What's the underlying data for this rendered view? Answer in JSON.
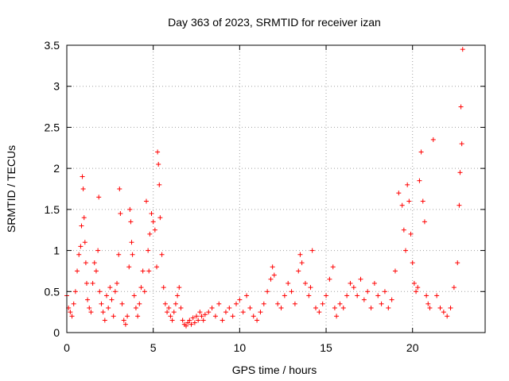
{
  "chart_data": {
    "type": "scatter",
    "title": "Day 363 of 2023, SRMTID for receiver izan",
    "xlabel": "GPS time / hours",
    "ylabel": "SRMTID / TECUs",
    "xlim": [
      0,
      24.2
    ],
    "ylim": [
      0,
      3.5
    ],
    "xticks": [
      0,
      5,
      10,
      15,
      20
    ],
    "xtick_labels": [
      "0",
      "5",
      "10",
      "15",
      "20"
    ],
    "yticks": [
      0,
      0.5,
      1,
      1.5,
      2,
      2.5,
      3,
      3.5
    ],
    "ytick_labels": [
      "0",
      "0.5",
      "1",
      "1.5",
      "2",
      "2.5",
      "3",
      "3.5"
    ],
    "grid": true,
    "marker": "plus",
    "series": [
      {
        "name": "SRMTID",
        "color": "#ff0000",
        "x": [
          0.0,
          0.1,
          0.2,
          0.3,
          0.4,
          0.5,
          0.6,
          0.7,
          0.8,
          0.85,
          0.9,
          0.95,
          1.0,
          1.05,
          1.1,
          1.15,
          1.2,
          1.3,
          1.4,
          1.5,
          1.6,
          1.7,
          1.8,
          1.85,
          1.9,
          2.0,
          2.1,
          2.2,
          2.3,
          2.4,
          2.5,
          2.6,
          2.7,
          2.8,
          2.9,
          3.0,
          3.05,
          3.1,
          3.2,
          3.3,
          3.4,
          3.5,
          3.6,
          3.65,
          3.7,
          3.75,
          3.8,
          3.9,
          4.0,
          4.1,
          4.2,
          4.3,
          4.4,
          4.5,
          4.6,
          4.7,
          4.75,
          4.8,
          4.9,
          5.0,
          5.1,
          5.2,
          5.25,
          5.3,
          5.35,
          5.4,
          5.5,
          5.6,
          5.7,
          5.8,
          5.9,
          6.0,
          6.1,
          6.2,
          6.3,
          6.4,
          6.5,
          6.6,
          6.7,
          6.8,
          6.9,
          7.0,
          7.1,
          7.2,
          7.3,
          7.4,
          7.5,
          7.6,
          7.7,
          7.8,
          7.9,
          8.0,
          8.2,
          8.4,
          8.6,
          8.8,
          9.0,
          9.2,
          9.4,
          9.6,
          9.8,
          10.0,
          10.2,
          10.4,
          10.6,
          10.8,
          11.0,
          11.2,
          11.4,
          11.6,
          11.8,
          11.9,
          12.0,
          12.2,
          12.4,
          12.6,
          12.8,
          13.0,
          13.2,
          13.4,
          13.5,
          13.6,
          13.8,
          14.0,
          14.1,
          14.2,
          14.4,
          14.6,
          14.8,
          15.0,
          15.2,
          15.4,
          15.5,
          15.6,
          15.8,
          16.0,
          16.2,
          16.4,
          16.6,
          16.8,
          17.0,
          17.2,
          17.4,
          17.6,
          17.8,
          18.0,
          18.2,
          18.4,
          18.6,
          18.8,
          19.0,
          19.2,
          19.4,
          19.5,
          19.6,
          19.7,
          19.8,
          19.9,
          20.0,
          20.1,
          20.2,
          20.3,
          20.4,
          20.5,
          20.6,
          20.7,
          20.8,
          20.9,
          21.0,
          21.2,
          21.4,
          21.6,
          21.8,
          22.0,
          22.2,
          22.4,
          22.6,
          22.7,
          22.75,
          22.8,
          22.85,
          22.9
        ],
        "y": [
          0.45,
          0.3,
          0.25,
          0.2,
          0.35,
          0.5,
          0.75,
          0.95,
          1.05,
          1.3,
          1.9,
          1.75,
          1.4,
          1.1,
          0.85,
          0.6,
          0.4,
          0.3,
          0.25,
          0.6,
          0.85,
          0.75,
          1.0,
          1.65,
          0.5,
          0.35,
          0.25,
          0.15,
          0.45,
          0.3,
          0.55,
          0.4,
          0.2,
          0.5,
          0.6,
          0.95,
          1.75,
          1.45,
          0.35,
          0.15,
          0.1,
          0.2,
          0.8,
          1.5,
          1.35,
          1.1,
          0.95,
          0.45,
          0.3,
          0.2,
          0.35,
          0.55,
          0.75,
          0.5,
          1.6,
          1.0,
          0.75,
          1.2,
          1.45,
          1.35,
          1.25,
          0.8,
          2.2,
          2.05,
          1.8,
          1.4,
          0.95,
          0.55,
          0.35,
          0.25,
          0.3,
          0.2,
          0.15,
          0.25,
          0.35,
          0.45,
          0.55,
          0.3,
          0.15,
          0.1,
          0.08,
          0.12,
          0.15,
          0.1,
          0.18,
          0.12,
          0.2,
          0.15,
          0.25,
          0.2,
          0.15,
          0.22,
          0.25,
          0.3,
          0.2,
          0.35,
          0.15,
          0.25,
          0.3,
          0.2,
          0.35,
          0.4,
          0.25,
          0.45,
          0.3,
          0.2,
          0.15,
          0.25,
          0.35,
          0.5,
          0.65,
          0.8,
          0.7,
          0.35,
          0.3,
          0.45,
          0.6,
          0.5,
          0.35,
          0.75,
          0.95,
          0.85,
          0.6,
          0.45,
          0.55,
          1.0,
          0.3,
          0.25,
          0.35,
          0.45,
          0.65,
          0.8,
          0.3,
          0.2,
          0.35,
          0.3,
          0.45,
          0.6,
          0.55,
          0.45,
          0.65,
          0.4,
          0.5,
          0.3,
          0.6,
          0.45,
          0.35,
          0.5,
          0.3,
          0.4,
          0.75,
          1.7,
          1.55,
          1.25,
          1.0,
          1.8,
          1.6,
          1.2,
          0.85,
          0.6,
          0.5,
          0.55,
          1.85,
          2.2,
          1.6,
          1.35,
          0.45,
          0.35,
          0.3,
          2.35,
          0.45,
          0.3,
          0.25,
          0.2,
          0.3,
          0.55,
          0.85,
          1.55,
          1.95,
          2.75,
          2.3,
          3.45
        ]
      }
    ]
  }
}
